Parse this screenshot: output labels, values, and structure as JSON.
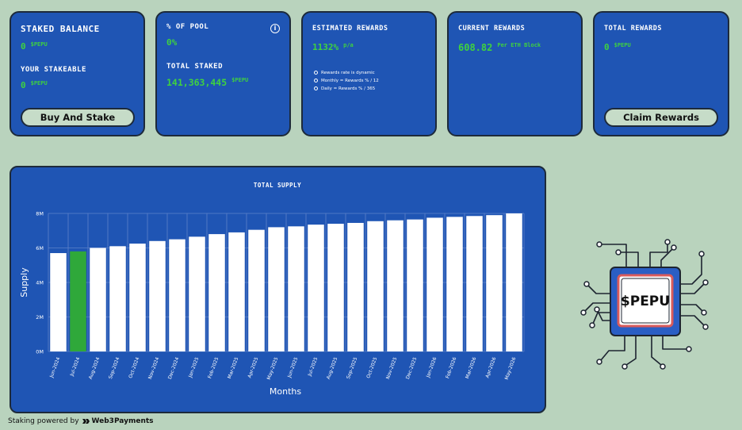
{
  "cards": {
    "staked": {
      "title": "STAKED BALANCE",
      "value": "0",
      "unit": "$PEPU",
      "stakeable_title": "YOUR STAKEABLE",
      "stakeable_value": "0",
      "stakeable_unit": "$PEPU",
      "button": "Buy And Stake"
    },
    "pool": {
      "title": "% OF POOL",
      "value": "0%",
      "info_icon": "i",
      "total_title": "TOTAL STAKED",
      "total_value": "141,363,445",
      "total_unit": "$PEPU"
    },
    "estimated": {
      "title": "ESTIMATED REWARDS",
      "value": "1132%",
      "suffix": "p/a",
      "notes": [
        "Rewards rate is dynamic",
        "Monthly = Rewards % / 12",
        "Daily = Rewards % / 365"
      ]
    },
    "current": {
      "title": "CURRENT REWARDS",
      "value": "608.82",
      "suffix": "Per ETH Block"
    },
    "total": {
      "title": "TOTAL REWARDS",
      "value": "0",
      "unit": "$PEPU",
      "button": "Claim Rewards"
    }
  },
  "chart_data": {
    "type": "bar",
    "title": "TOTAL SUPPLY",
    "xlabel": "Months",
    "ylabel": "Supply",
    "ylim": [
      0,
      8
    ],
    "yticks": [
      "0M",
      "2M",
      "4M",
      "6M",
      "8M"
    ],
    "grid": true,
    "highlight_index": 1,
    "bar_color": "#ffffff",
    "highlight_color": "#2fa83a",
    "categories": [
      "Jun-2024",
      "Jul-2024",
      "Aug-2024",
      "Sep-2024",
      "Oct-2024",
      "Nov-2024",
      "Dec-2024",
      "Jan-2025",
      "Feb-2025",
      "Mar-2025",
      "Apr-2025",
      "May-2025",
      "Jun-2025",
      "Jul-2025",
      "Aug-2025",
      "Sep-2025",
      "Oct-2025",
      "Nov-2025",
      "Dec-2025",
      "Jan-2026",
      "Feb-2026",
      "Mar-2026",
      "Apr-2026",
      "May-2026"
    ],
    "values": [
      5.7,
      5.8,
      6.0,
      6.1,
      6.25,
      6.4,
      6.5,
      6.65,
      6.8,
      6.9,
      7.05,
      7.2,
      7.25,
      7.35,
      7.4,
      7.45,
      7.55,
      7.6,
      7.65,
      7.75,
      7.8,
      7.85,
      7.9,
      8.0
    ]
  },
  "footer": {
    "text": "Staking powered by",
    "brand": "Web3Payments"
  },
  "logo": {
    "text": "$PEPU"
  },
  "colors": {
    "background": "#b9d3bd",
    "card": "#1f55b4",
    "accent_green": "#3fd23f"
  }
}
